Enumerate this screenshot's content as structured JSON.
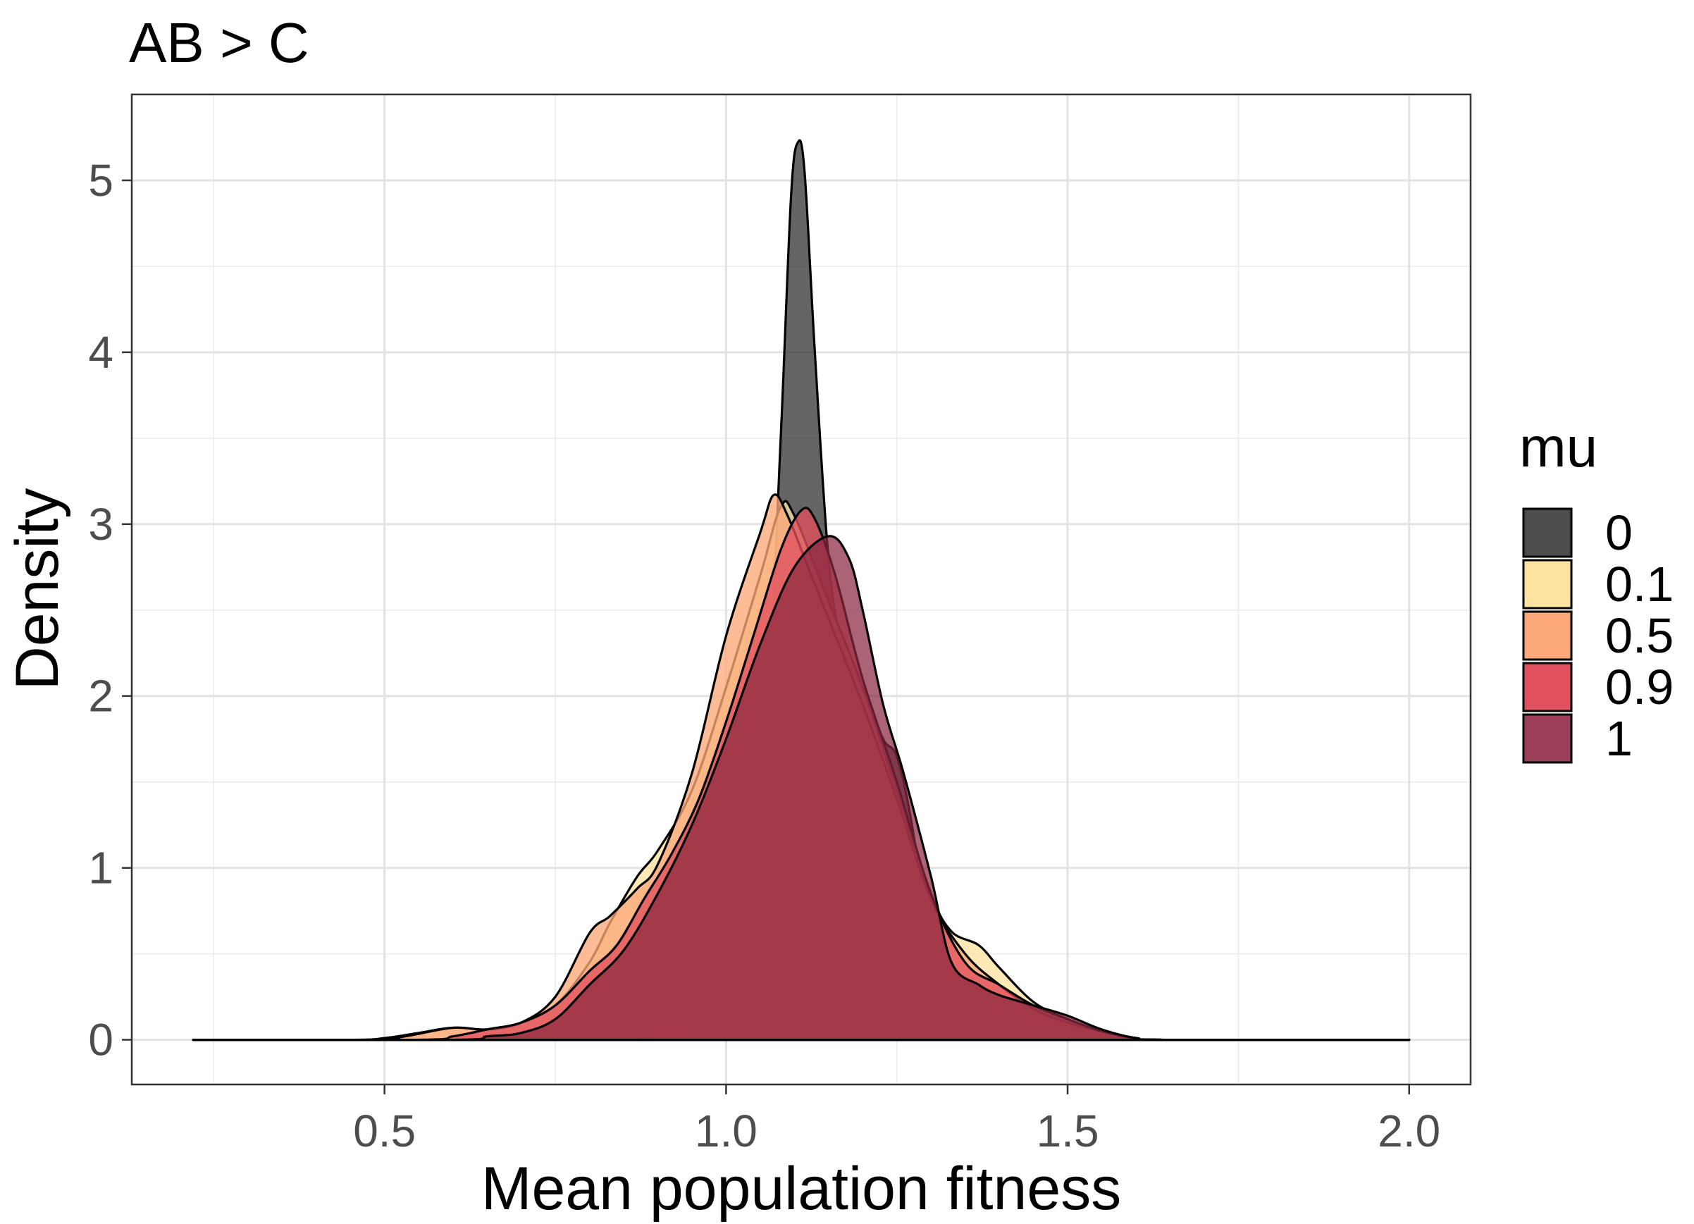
{
  "chart_data": {
    "type": "area",
    "title": "AB > C",
    "xlabel": "Mean population fitness",
    "ylabel": "Density",
    "xlim": [
      0.13,
      2.09
    ],
    "ylim": [
      -0.26,
      5.5
    ],
    "x_ticks": [
      "0.5",
      "1.0",
      "1.5",
      "2.0"
    ],
    "x_tick_values": [
      0.5,
      1.0,
      1.5,
      2.0
    ],
    "x_minor_values": [
      0.25,
      0.75,
      1.25,
      1.75
    ],
    "y_ticks": [
      "0",
      "1",
      "2",
      "3",
      "4",
      "5"
    ],
    "y_tick_values": [
      0,
      1,
      2,
      3,
      4,
      5
    ],
    "y_minor_values": [
      0.5,
      1.5,
      2.5,
      3.5,
      4.5
    ],
    "grid": true,
    "legend": {
      "title": "mu",
      "position": "right",
      "items": [
        {
          "label": "0",
          "color": "#4d4d4d"
        },
        {
          "label": "0.1",
          "color": "#fde3a0"
        },
        {
          "label": "0.5",
          "color": "#fca878"
        },
        {
          "label": "0.9",
          "color": "#e0505e"
        },
        {
          "label": "1",
          "color": "#9b4058"
        }
      ]
    },
    "series": [
      {
        "name": "0",
        "color": "#3a3a3a",
        "opacity": 0.78,
        "points": [
          [
            0.22,
            0
          ],
          [
            0.78,
            0
          ],
          [
            0.85,
            0.002
          ],
          [
            0.9,
            0.02
          ],
          [
            0.95,
            0.1
          ],
          [
            1.0,
            0.4
          ],
          [
            1.03,
            0.9
          ],
          [
            1.06,
            1.9
          ],
          [
            1.08,
            3.5
          ],
          [
            1.095,
            4.9
          ],
          [
            1.105,
            5.22
          ],
          [
            1.115,
            5.05
          ],
          [
            1.13,
            4.0
          ],
          [
            1.15,
            2.8
          ],
          [
            1.17,
            2.3
          ],
          [
            1.2,
            2.05
          ],
          [
            1.23,
            1.75
          ],
          [
            1.25,
            1.65
          ],
          [
            1.27,
            1.3
          ],
          [
            1.29,
            0.8
          ],
          [
            1.31,
            0.5
          ],
          [
            1.34,
            0.35
          ],
          [
            1.37,
            0.28
          ],
          [
            1.4,
            0.2
          ],
          [
            1.45,
            0.12
          ],
          [
            1.5,
            0.08
          ],
          [
            1.55,
            0.05
          ],
          [
            1.6,
            0.01
          ],
          [
            1.65,
            0
          ],
          [
            2.0,
            0
          ]
        ]
      },
      {
        "name": "0.1",
        "color": "#fde3a0",
        "opacity": 0.78,
        "points": [
          [
            0.22,
            0
          ],
          [
            0.45,
            0
          ],
          [
            0.5,
            0.01
          ],
          [
            0.55,
            0.04
          ],
          [
            0.6,
            0.07
          ],
          [
            0.65,
            0.06
          ],
          [
            0.7,
            0.1
          ],
          [
            0.75,
            0.2
          ],
          [
            0.8,
            0.45
          ],
          [
            0.83,
            0.68
          ],
          [
            0.87,
            0.95
          ],
          [
            0.9,
            1.1
          ],
          [
            0.95,
            1.45
          ],
          [
            1.0,
            2.05
          ],
          [
            1.05,
            2.7
          ],
          [
            1.08,
            3.1
          ],
          [
            1.1,
            3.05
          ],
          [
            1.15,
            2.55
          ],
          [
            1.2,
            2.05
          ],
          [
            1.25,
            1.45
          ],
          [
            1.3,
            0.85
          ],
          [
            1.33,
            0.63
          ],
          [
            1.37,
            0.55
          ],
          [
            1.4,
            0.42
          ],
          [
            1.45,
            0.22
          ],
          [
            1.5,
            0.12
          ],
          [
            1.55,
            0.05
          ],
          [
            1.6,
            0.01
          ],
          [
            1.65,
            0
          ],
          [
            2.0,
            0
          ]
        ]
      },
      {
        "name": "0.5",
        "color": "#fca878",
        "opacity": 0.78,
        "points": [
          [
            0.22,
            0
          ],
          [
            0.48,
            0
          ],
          [
            0.53,
            0.02
          ],
          [
            0.6,
            0.07
          ],
          [
            0.65,
            0.06
          ],
          [
            0.7,
            0.1
          ],
          [
            0.75,
            0.25
          ],
          [
            0.8,
            0.62
          ],
          [
            0.83,
            0.72
          ],
          [
            0.87,
            0.88
          ],
          [
            0.9,
            1.02
          ],
          [
            0.95,
            1.55
          ],
          [
            1.0,
            2.35
          ],
          [
            1.05,
            2.95
          ],
          [
            1.07,
            3.17
          ],
          [
            1.09,
            3.05
          ],
          [
            1.12,
            2.75
          ],
          [
            1.15,
            2.45
          ],
          [
            1.2,
            1.95
          ],
          [
            1.25,
            1.4
          ],
          [
            1.3,
            0.82
          ],
          [
            1.35,
            0.5
          ],
          [
            1.4,
            0.32
          ],
          [
            1.45,
            0.18
          ],
          [
            1.5,
            0.1
          ],
          [
            1.55,
            0.05
          ],
          [
            1.6,
            0.01
          ],
          [
            1.65,
            0
          ],
          [
            2.0,
            0
          ]
        ]
      },
      {
        "name": "0.9",
        "color": "#e0505e",
        "opacity": 0.78,
        "points": [
          [
            0.22,
            0
          ],
          [
            0.55,
            0
          ],
          [
            0.6,
            0.02
          ],
          [
            0.65,
            0.06
          ],
          [
            0.7,
            0.1
          ],
          [
            0.75,
            0.2
          ],
          [
            0.8,
            0.4
          ],
          [
            0.84,
            0.55
          ],
          [
            0.88,
            0.82
          ],
          [
            0.92,
            1.08
          ],
          [
            0.96,
            1.4
          ],
          [
            1.0,
            1.85
          ],
          [
            1.04,
            2.35
          ],
          [
            1.08,
            2.85
          ],
          [
            1.11,
            3.08
          ],
          [
            1.13,
            3.03
          ],
          [
            1.16,
            2.7
          ],
          [
            1.2,
            2.1
          ],
          [
            1.25,
            1.5
          ],
          [
            1.3,
            0.85
          ],
          [
            1.35,
            0.45
          ],
          [
            1.4,
            0.32
          ],
          [
            1.45,
            0.2
          ],
          [
            1.5,
            0.12
          ],
          [
            1.55,
            0.05
          ],
          [
            1.6,
            0.01
          ],
          [
            1.65,
            0
          ],
          [
            2.0,
            0
          ]
        ]
      },
      {
        "name": "1",
        "color": "#8b2840",
        "opacity": 0.72,
        "points": [
          [
            0.22,
            0
          ],
          [
            0.6,
            0
          ],
          [
            0.65,
            0.02
          ],
          [
            0.7,
            0.04
          ],
          [
            0.75,
            0.12
          ],
          [
            0.8,
            0.32
          ],
          [
            0.85,
            0.52
          ],
          [
            0.9,
            0.85
          ],
          [
            0.95,
            1.25
          ],
          [
            1.0,
            1.75
          ],
          [
            1.05,
            2.3
          ],
          [
            1.1,
            2.75
          ],
          [
            1.15,
            2.93
          ],
          [
            1.18,
            2.8
          ],
          [
            1.2,
            2.5
          ],
          [
            1.23,
            1.95
          ],
          [
            1.26,
            1.55
          ],
          [
            1.3,
            0.95
          ],
          [
            1.33,
            0.45
          ],
          [
            1.37,
            0.32
          ],
          [
            1.4,
            0.26
          ],
          [
            1.45,
            0.2
          ],
          [
            1.5,
            0.14
          ],
          [
            1.55,
            0.06
          ],
          [
            1.6,
            0.01
          ],
          [
            1.65,
            0
          ],
          [
            2.0,
            0
          ]
        ]
      }
    ]
  }
}
